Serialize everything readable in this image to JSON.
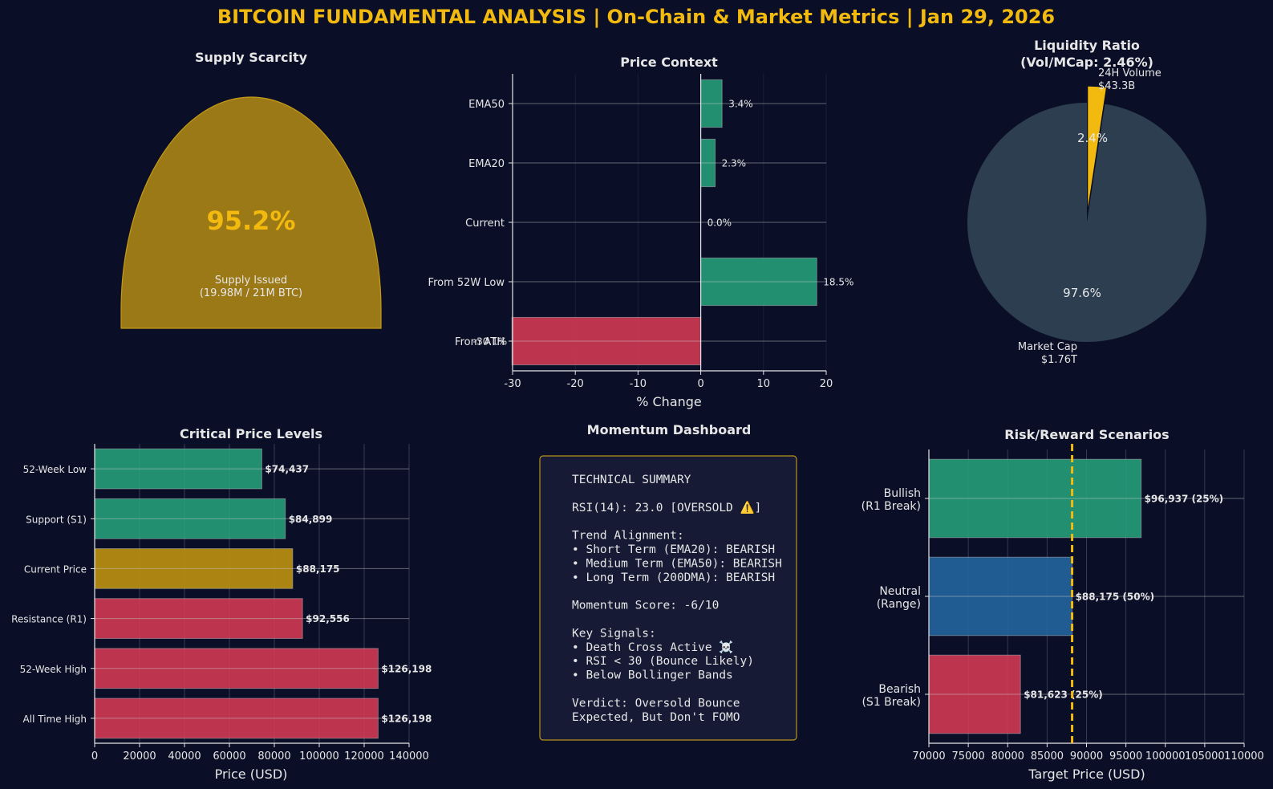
{
  "page_title": "BITCOIN FUNDAMENTAL ANALYSIS | On-Chain & Market Metrics | Jan 29, 2026",
  "colors": {
    "background": "#0a0e27",
    "title": "#f2b90f",
    "text": "#e6e6e6",
    "green": "#26a17b",
    "red": "#d63a55",
    "gold": "#c2950f",
    "blue": "#2467a0",
    "pie_cap": "#2c3e50",
    "pie_volume": "#f2b90f",
    "gauge": "#9b7917"
  },
  "chart_data": [
    {
      "id": "supply",
      "type": "gauge",
      "title": "Supply Scarcity",
      "value_pct": 95.2,
      "value_label": "95.2%",
      "caption_line1": "Supply Issued",
      "caption_line2": "(19.98M / 21M BTC)"
    },
    {
      "id": "price_context",
      "type": "bar",
      "orientation": "horizontal",
      "title": "Price Context",
      "xlabel": "% Change",
      "xlim": [
        -30,
        20
      ],
      "xticks": [
        -30,
        -20,
        -10,
        0,
        10,
        20
      ],
      "categories": [
        "EMA50",
        "EMA20",
        "Current",
        "From 52W Low",
        "From ATH"
      ],
      "values": [
        3.4,
        2.3,
        0.0,
        18.5,
        -30.1
      ],
      "labels": [
        "3.4%",
        "2.3%",
        "0.0%",
        "18.5%",
        "-30.1%"
      ]
    },
    {
      "id": "liquidity",
      "type": "pie",
      "title_line1": "Liquidity Ratio",
      "title_line2": "(Vol/MCap: 2.46%)",
      "slices": [
        {
          "name_line1": "24H Volume",
          "name_line2": "$43.3B",
          "value": 2.4,
          "pct_label": "2.4%"
        },
        {
          "name_line1": "Market Cap",
          "name_line2": "$1.76T",
          "value": 97.6,
          "pct_label": "97.6%"
        }
      ]
    },
    {
      "id": "levels",
      "type": "bar",
      "orientation": "horizontal",
      "title": "Critical Price Levels",
      "xlabel": "Price (USD)",
      "xlim": [
        0,
        140000
      ],
      "xticks": [
        0,
        20000,
        40000,
        60000,
        80000,
        100000,
        120000,
        140000
      ],
      "categories": [
        "52-Week Low",
        "Support (S1)",
        "Current Price",
        "Resistance (R1)",
        "52-Week High",
        "All Time High"
      ],
      "values": [
        74437,
        84899,
        88175,
        92556,
        126198,
        126198
      ],
      "labels": [
        "$74,437",
        "$84,899",
        "$88,175",
        "$92,556",
        "$126,198",
        "$126,198"
      ]
    },
    {
      "id": "momentum",
      "type": "table",
      "title": "Momentum Dashboard",
      "lines": [
        "TECHNICAL SUMMARY",
        "",
        "RSI(14): 23.0 [OVERSOLD ⚠️]",
        "",
        "Trend Alignment:",
        "• Short Term (EMA20): BEARISH",
        "• Medium Term (EMA50): BEARISH",
        "• Long Term (200DMA): BEARISH",
        "",
        "Momentum Score: -6/10",
        "",
        "Key Signals:",
        "• Death Cross Active ☠️",
        "• RSI < 30 (Bounce Likely)",
        "• Below Bollinger Bands",
        "",
        "Verdict: Oversold Bounce",
        "Expected, But Don't FOMO"
      ]
    },
    {
      "id": "scenarios",
      "type": "bar",
      "orientation": "horizontal",
      "title": "Risk/Reward Scenarios",
      "xlabel": "Target Price (USD)",
      "xlim": [
        70000,
        110000
      ],
      "xticks": [
        70000,
        75000,
        80000,
        85000,
        90000,
        95000,
        100000,
        105000,
        110000
      ],
      "reference_line": 88175,
      "categories": [
        {
          "line1": "Bullish",
          "line2": "(R1 Break)"
        },
        {
          "line1": "Neutral",
          "line2": "(Range)"
        },
        {
          "line1": "Bearish",
          "line2": "(S1 Break)"
        }
      ],
      "values": [
        96937,
        88175,
        81623
      ],
      "labels": [
        "$96,937 (25%)",
        "$88,175 (50%)",
        "$81,623 (25%)"
      ]
    }
  ]
}
